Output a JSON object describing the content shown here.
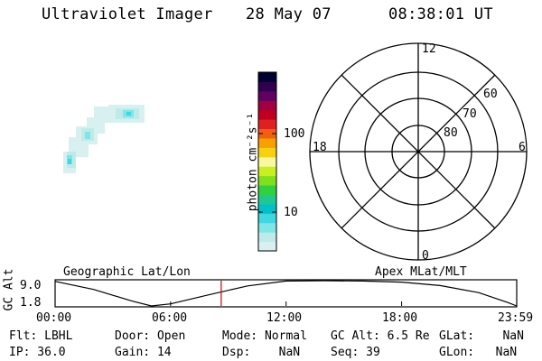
{
  "header": {
    "instrument": "Ultraviolet Imager",
    "date": "28 May 07",
    "time": "08:38:01 UT"
  },
  "colorbar": {
    "unit_label": "photon cm⁻²s⁻¹",
    "tick_100": "100",
    "tick_10": "10",
    "colors": [
      "#d8f0f0",
      "#c0eaea",
      "#7ee6e6",
      "#40d8e0",
      "#00c0c8",
      "#20c890",
      "#30d040",
      "#80e020",
      "#c8f020",
      "#f8f8a0",
      "#f8d010",
      "#f8a000",
      "#f06010",
      "#e02020",
      "#c00020",
      "#a00040",
      "#600060",
      "#300050",
      "#000030"
    ]
  },
  "polar_plot": {
    "mlt_labels": {
      "top": "12",
      "left": "18",
      "right": "6",
      "bottom": "0"
    },
    "lat_labels": [
      "60",
      "70",
      "80"
    ]
  },
  "timeline": {
    "left_label": "Geographic Lat/Lon",
    "right_label": "Apex MLat/MLT",
    "y_axis_label": "GC Alt",
    "y_max": "9.0",
    "y_min": "1.8",
    "x_ticks": [
      "00:00",
      "06:00",
      "12:00",
      "18:00",
      "23:59"
    ],
    "marker_color": "#cc0000"
  },
  "chart_data": {
    "type": "line",
    "title": "",
    "xlabel": "",
    "ylabel": "GC Alt",
    "xlim": [
      "00:00",
      "23:59"
    ],
    "ylim": [
      1.8,
      9.0
    ],
    "x": [
      0,
      2,
      4,
      5,
      6,
      8,
      10,
      12,
      14,
      16,
      18,
      20,
      22,
      23.5,
      23.98
    ],
    "series": [
      {
        "values": [
          8.8,
          6.5,
          3.2,
          1.8,
          2.4,
          5.0,
          7.5,
          8.9,
          9.0,
          8.9,
          8.6,
          7.6,
          5.6,
          2.8,
          1.8
        ]
      }
    ],
    "current_time_marker": 8.63
  },
  "status": {
    "flt": "Flt: LBHL",
    "ip": "IP: 36.0",
    "door": "Door: Open",
    "gain": "Gain: 14",
    "mode": "Mode: Normal",
    "dsp": "Dsp:    NaN",
    "gcalt": "GC Alt: 6.5 Re",
    "seq": "Seq: 39",
    "glat": "GLat:    NaN",
    "glon": "GLon:   NaN"
  }
}
